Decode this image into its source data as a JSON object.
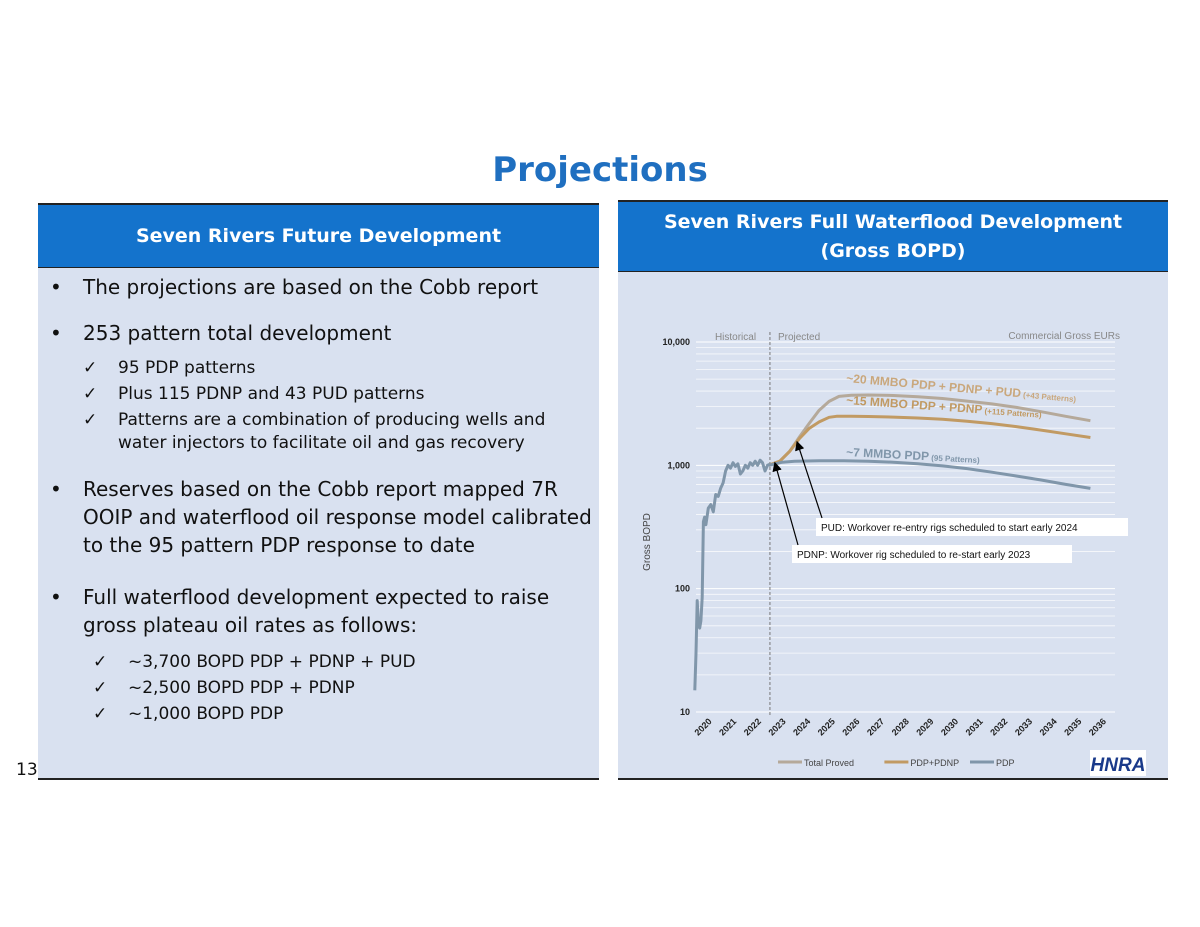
{
  "title": "Projections",
  "page_number": "13",
  "left": {
    "header": "Seven Rivers Future Development",
    "bullets": [
      "The projections are based on the Cobb report",
      "253 pattern total development",
      "Reserves based on the Cobb report mapped 7R OOIP and waterflood oil response model calibrated to the 95 pattern PDP response to date",
      "Full waterflood development expected to raise gross plateau oil rates as follows:"
    ],
    "sub_development": [
      "95 PDP patterns",
      "Plus 115 PDNP and 43 PUD patterns",
      "Patterns are a combination of producing wells and water injectors to facilitate oil and gas recovery"
    ],
    "sub_rates": [
      "~3,700 BOPD PDP + PDNP + PUD",
      "~2,500 BOPD PDP + PDNP",
      "~1,000 BOPD PDP"
    ],
    "bullet_glyph": "•",
    "check_glyph": "✓"
  },
  "right": {
    "header_line1": "Seven Rivers Full Waterflood Development",
    "header_line2": "(Gross BOPD)",
    "logo_text": "HNRA"
  },
  "chart_data": {
    "type": "line",
    "yscale": "log",
    "ylim": [
      10,
      10000
    ],
    "xlim": [
      2020,
      2037
    ],
    "ylabel": "Gross BOPD",
    "yticks": [
      10,
      100,
      1000,
      10000
    ],
    "ytick_labels": [
      "10",
      "100",
      "1,000",
      "10,000"
    ],
    "xtick_labels": [
      "2020",
      "2021",
      "2022",
      "2023",
      "2024",
      "2025",
      "2026",
      "2027",
      "2028",
      "2029",
      "2030",
      "2031",
      "2032",
      "2033",
      "2034",
      "2035",
      "2036"
    ],
    "region_labels": {
      "historical": "Historical",
      "projected": "Projected",
      "eur": "Commercial Gross EURs"
    },
    "split_year": 2023.0,
    "series": [
      {
        "name": "Total Proved",
        "color": "#b5a99a",
        "x": [
          2022.95,
          2023.4,
          2023.8,
          2024.2,
          2024.6,
          2025.0,
          2025.4,
          2025.8,
          2026.3,
          2027,
          2028,
          2029,
          2030,
          2031,
          2032,
          2033,
          2034,
          2035,
          2036
        ],
        "y": [
          1000,
          1080,
          1300,
          1700,
          2200,
          2800,
          3300,
          3620,
          3700,
          3720,
          3680,
          3600,
          3480,
          3320,
          3150,
          2950,
          2720,
          2500,
          2300
        ]
      },
      {
        "name": "PDP+PDNP",
        "color": "#c19a63",
        "x": [
          2022.95,
          2023.4,
          2023.8,
          2024.2,
          2024.6,
          2025.0,
          2025.4,
          2025.7,
          2026.3,
          2027,
          2028,
          2029,
          2030,
          2031,
          2032,
          2033,
          2034,
          2035,
          2036
        ],
        "y": [
          1000,
          1080,
          1300,
          1650,
          2000,
          2250,
          2450,
          2500,
          2500,
          2490,
          2460,
          2420,
          2360,
          2280,
          2180,
          2060,
          1930,
          1800,
          1680
        ]
      },
      {
        "name": "PDP",
        "color": "#8096aa",
        "x": [
          2022.95,
          2023.5,
          2024,
          2025,
          2026,
          2027,
          2028,
          2029,
          2030,
          2031,
          2032,
          2033,
          2034,
          2035,
          2036
        ],
        "y": [
          1000,
          1060,
          1080,
          1090,
          1090,
          1080,
          1060,
          1030,
          990,
          940,
          880,
          820,
          760,
          700,
          650
        ]
      },
      {
        "name": "Historical",
        "color": "#8096aa",
        "legend": false,
        "x": [
          2019.95,
          2020.0,
          2020.05,
          2020.1,
          2020.15,
          2020.2,
          2020.25,
          2020.3,
          2020.35,
          2020.4,
          2020.5,
          2020.6,
          2020.7,
          2020.8,
          2020.9,
          2021.0,
          2021.1,
          2021.2,
          2021.3,
          2021.4,
          2021.5,
          2021.6,
          2021.7,
          2021.8,
          2021.9,
          2022.0,
          2022.1,
          2022.2,
          2022.3,
          2022.4,
          2022.5,
          2022.6,
          2022.7,
          2022.8,
          2022.9,
          2023.0
        ],
        "y": [
          15,
          30,
          80,
          50,
          48,
          55,
          85,
          350,
          380,
          330,
          450,
          480,
          420,
          580,
          560,
          650,
          720,
          900,
          1000,
          950,
          1050,
          980,
          1030,
          850,
          900,
          1000,
          950,
          1050,
          1000,
          1080,
          1000,
          1100,
          1050,
          900,
          1000,
          1020
        ]
      }
    ],
    "legend": [
      "Total Proved",
      "PDP+PDNP",
      "PDP"
    ],
    "annotations": [
      {
        "main": "~20 MMBO PDP + PDNP + PUD",
        "small": " (+43 Patterns)",
        "color": "#c9a77c"
      },
      {
        "main": "~15 MMBO PDP + PDNP",
        "small": " (+115 Patterns)",
        "color": "#c19a63"
      },
      {
        "main": "~7 MMBO PDP",
        "small": " (95 Patterns)",
        "color": "#8096aa"
      }
    ],
    "callouts": [
      {
        "text": "PUD: Workover re-entry rigs scheduled to start early 2024",
        "arrow_to": [
          2024.1,
          1550
        ]
      },
      {
        "text": "PDNP: Workover rig scheduled to re-start early 2023",
        "arrow_to": [
          2023.2,
          1050
        ]
      }
    ]
  }
}
